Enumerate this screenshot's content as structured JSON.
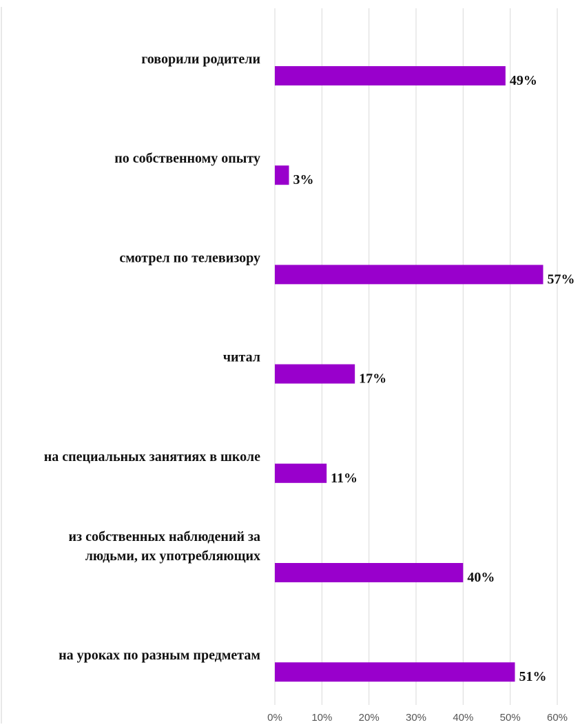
{
  "chart_data": {
    "type": "bar",
    "orientation": "horizontal",
    "categories": [
      "говорили родители",
      "по собственному опыту",
      "смотрел по телевизору",
      "читал",
      "на специальных занятиях в школе",
      "из собственных наблюдений за людьми, их употребляющих",
      "на уроках по разным предметам"
    ],
    "category_lines": [
      [
        "говорили родители"
      ],
      [
        "по собственному опыту"
      ],
      [
        "смотрел по телевизору"
      ],
      [
        "читал"
      ],
      [
        "на специальных занятиях в школе"
      ],
      [
        "из собственных наблюдений за",
        "людьми, их употребляющих"
      ],
      [
        "на уроках по разным предметам"
      ]
    ],
    "values": [
      49,
      3,
      57,
      17,
      11,
      40,
      51
    ],
    "value_labels": [
      "49%",
      "3%",
      "57%",
      "17%",
      "11%",
      "40%",
      "51%"
    ],
    "xlim": [
      0,
      60
    ],
    "x_ticks": [
      0,
      10,
      20,
      30,
      40,
      50,
      60
    ],
    "x_tick_labels": [
      "0%",
      "10%",
      "20%",
      "30%",
      "40%",
      "50%",
      "60%"
    ],
    "grid": true,
    "legend": "none",
    "colors": {
      "bar": "#9900cc",
      "grid": "#d9d9d9",
      "label": "#111111",
      "tick": "#555555"
    }
  }
}
